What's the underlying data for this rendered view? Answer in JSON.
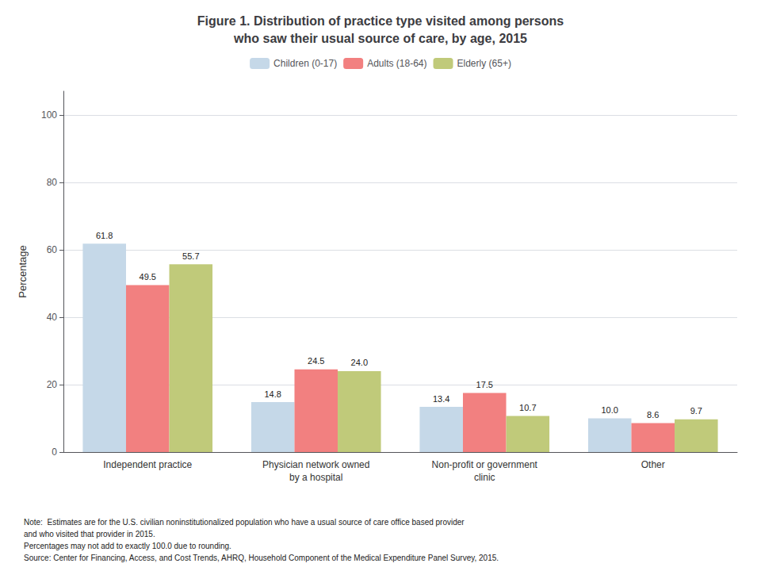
{
  "chart_data": {
    "type": "bar",
    "title": "Figure 1. Distribution of practice type visited among persons\nwho saw their usual source of care, by age, 2015",
    "categories": [
      "Independent practice",
      "Physician network owned\nby a hospital",
      "Non-profit or government\nclinic",
      "Other"
    ],
    "series": [
      {
        "name": "Children (0-17)",
        "color": "#c5d8e8",
        "values": [
          61.8,
          14.8,
          13.4,
          10.0
        ],
        "value_labels": [
          "61.8",
          "14.8",
          "13.4",
          "10.0"
        ]
      },
      {
        "name": "Adults (18-64)",
        "color": "#f28080",
        "values": [
          49.5,
          24.5,
          17.5,
          8.6
        ],
        "value_labels": [
          "49.5",
          "24.5",
          "17.5",
          "8.6"
        ]
      },
      {
        "name": "Elderly (65+)",
        "color": "#c0ca7a",
        "values": [
          55.7,
          24.0,
          10.7,
          9.7
        ],
        "value_labels": [
          "55.7",
          "24.0",
          "10.7",
          "9.7"
        ]
      }
    ],
    "ylabel": "Percentage",
    "ylim": [
      0,
      107
    ],
    "yticks": [
      0,
      20,
      40,
      60,
      80,
      100
    ],
    "grid": true,
    "legend": "top",
    "data_labels": true,
    "annotations": [
      "Note:  Estimates are for the U.S. civilian noninstitutionalized population who have a usual source of care office based provider",
      "and who visited that provider in 2015.",
      "Percentages may not add to exactly 100.0 due to rounding.",
      "Source: Center for Financing, Access, and Cost Trends, AHRQ, Household Component of the Medical Expenditure Panel Survey, 2015."
    ]
  }
}
